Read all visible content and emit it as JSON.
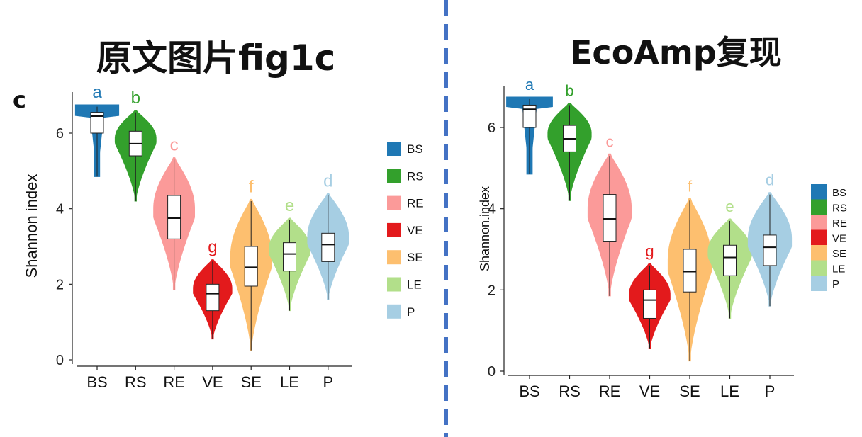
{
  "titles": {
    "left": "原文图片fig1c",
    "right": "EcoAmp复现",
    "panel_letter": "c"
  },
  "chart_data": [
    {
      "type": "violin",
      "title": "原文图片fig1c",
      "xlabel": "",
      "ylabel": "Shannon index",
      "ylim": [
        0,
        7
      ],
      "yticks": [
        "0",
        "2",
        "4",
        "6"
      ],
      "categories": [
        "BS",
        "RS",
        "RE",
        "VE",
        "SE",
        "LE",
        "P"
      ],
      "colors": [
        "#1f78b4",
        "#33a02c",
        "#fb9a99",
        "#e31a1c",
        "#fdbf6f",
        "#b2df8a",
        "#a6cee3"
      ],
      "significance_letters": [
        "a",
        "b",
        "c",
        "g",
        "f",
        "e",
        "d"
      ],
      "series": [
        {
          "name": "BS",
          "min": 4.85,
          "q1": 6.0,
          "median": 6.45,
          "q3": 6.55,
          "max": 6.7,
          "violin_top": 6.75
        },
        {
          "name": "RS",
          "min": 4.2,
          "q1": 5.4,
          "median": 5.72,
          "q3": 6.05,
          "max": 6.55,
          "violin_top": 6.6
        },
        {
          "name": "RE",
          "min": 1.85,
          "q1": 3.2,
          "median": 3.75,
          "q3": 4.35,
          "max": 5.3,
          "violin_top": 5.35
        },
        {
          "name": "VE",
          "min": 0.55,
          "q1": 1.3,
          "median": 1.75,
          "q3": 2.0,
          "max": 2.6,
          "violin_top": 2.65
        },
        {
          "name": "SE",
          "min": 0.25,
          "q1": 1.95,
          "median": 2.45,
          "q3": 3.0,
          "max": 4.2,
          "violin_top": 4.25
        },
        {
          "name": "LE",
          "min": 1.3,
          "q1": 2.35,
          "median": 2.8,
          "q3": 3.1,
          "max": 3.7,
          "violin_top": 3.75
        },
        {
          "name": "P",
          "min": 1.6,
          "q1": 2.6,
          "median": 3.05,
          "q3": 3.35,
          "max": 4.35,
          "violin_top": 4.4
        }
      ],
      "legend": {
        "position": "right",
        "entries": [
          "BS",
          "RS",
          "RE",
          "VE",
          "SE",
          "LE",
          "P"
        ]
      },
      "grid": false
    },
    {
      "type": "violin",
      "title": "EcoAmp复现",
      "xlabel": "",
      "ylabel": "Shannon.index",
      "ylim": [
        0,
        7
      ],
      "yticks": [
        "0",
        "2",
        "4",
        "6"
      ],
      "categories": [
        "BS",
        "RS",
        "RE",
        "VE",
        "SE",
        "LE",
        "P"
      ],
      "colors": [
        "#1f78b4",
        "#33a02c",
        "#fb9a99",
        "#e31a1c",
        "#fdbf6f",
        "#b2df8a",
        "#a6cee3"
      ],
      "significance_letters": [
        "a",
        "b",
        "c",
        "g",
        "f",
        "e",
        "d"
      ],
      "series": [
        {
          "name": "BS",
          "min": 4.85,
          "q1": 6.0,
          "median": 6.45,
          "q3": 6.55,
          "max": 6.7,
          "violin_top": 6.75
        },
        {
          "name": "RS",
          "min": 4.2,
          "q1": 5.4,
          "median": 5.72,
          "q3": 6.05,
          "max": 6.55,
          "violin_top": 6.6
        },
        {
          "name": "RE",
          "min": 1.85,
          "q1": 3.2,
          "median": 3.75,
          "q3": 4.35,
          "max": 5.3,
          "violin_top": 5.35
        },
        {
          "name": "VE",
          "min": 0.55,
          "q1": 1.3,
          "median": 1.75,
          "q3": 2.0,
          "max": 2.6,
          "violin_top": 2.65
        },
        {
          "name": "SE",
          "min": 0.25,
          "q1": 1.95,
          "median": 2.45,
          "q3": 3.0,
          "max": 4.2,
          "violin_top": 4.25
        },
        {
          "name": "LE",
          "min": 1.3,
          "q1": 2.35,
          "median": 2.8,
          "q3": 3.1,
          "max": 3.7,
          "violin_top": 3.75
        },
        {
          "name": "P",
          "min": 1.6,
          "q1": 2.6,
          "median": 3.05,
          "q3": 3.35,
          "max": 4.35,
          "violin_top": 4.4
        }
      ],
      "legend": {
        "position": "right",
        "entries": [
          "BS",
          "RS",
          "RE",
          "VE",
          "SE",
          "LE",
          "P"
        ]
      },
      "grid": false
    }
  ]
}
